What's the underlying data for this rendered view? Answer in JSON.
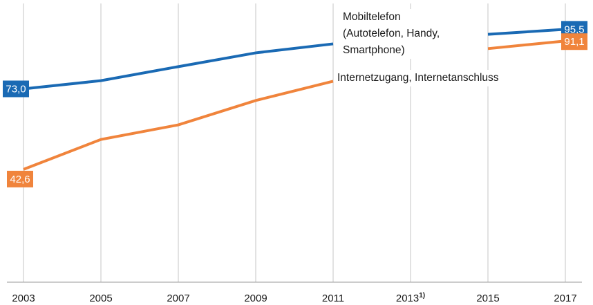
{
  "chart_data": {
    "type": "line",
    "categories": [
      "2003",
      "2005",
      "2007",
      "2009",
      "2011",
      "2013",
      "2015",
      "2017"
    ],
    "category_superscripts": [
      null,
      null,
      null,
      null,
      null,
      "1)",
      null,
      null
    ],
    "ylim": [
      0,
      105
    ],
    "grid": true,
    "series": [
      {
        "name": "Mobiltelefon\n(Autotelefon, Handy,\nSmartphone)",
        "color": "#1a6ab4",
        "values": [
          73.0,
          76.1,
          81.4,
          86.6,
          90.0,
          null,
          93.6,
          95.5
        ],
        "value_labels": [
          "73,0",
          null,
          null,
          null,
          null,
          null,
          null,
          "95,5"
        ]
      },
      {
        "name": "Internetzugang, Internetanschluss",
        "color": "#f0843c",
        "values": [
          42.6,
          53.9,
          59.4,
          68.6,
          75.9,
          null,
          88.2,
          91.1
        ],
        "value_labels": [
          "42,6",
          null,
          null,
          null,
          null,
          null,
          null,
          "91,1"
        ]
      }
    ]
  }
}
